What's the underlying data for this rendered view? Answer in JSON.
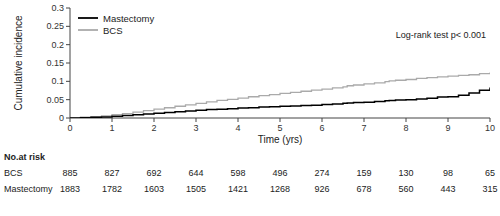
{
  "chart_data": {
    "type": "step",
    "xlabel": "Time (yrs)",
    "ylabel": "Cumulative incidence",
    "annotation": "Log-rank test p< 0.001",
    "xlim": [
      0,
      10
    ],
    "ylim": [
      0,
      0.3
    ],
    "xticks": [
      0,
      1,
      2,
      3,
      4,
      5,
      6,
      7,
      8,
      9,
      10
    ],
    "yticks": [
      0,
      0.05,
      0.1,
      0.15,
      0.2,
      0.25,
      0.3
    ],
    "grid": false,
    "legend": "upper left",
    "x": [
      0,
      0.25,
      0.5,
      0.75,
      1.0,
      1.25,
      1.5,
      1.75,
      2.0,
      2.25,
      2.5,
      2.75,
      3.0,
      3.25,
      3.5,
      3.75,
      4.0,
      4.25,
      4.5,
      4.75,
      5.0,
      5.25,
      5.5,
      5.75,
      6.0,
      6.25,
      6.5,
      6.6,
      6.75,
      7.0,
      7.25,
      7.5,
      7.6,
      7.75,
      8.0,
      8.25,
      8.5,
      8.75,
      9.0,
      9.25,
      9.5,
      9.75,
      10.0
    ],
    "series": [
      {
        "name": "Mastectomy",
        "color": "#000000",
        "values": [
          0.0,
          0.001,
          0.002,
          0.003,
          0.005,
          0.007,
          0.009,
          0.011,
          0.013,
          0.015,
          0.017,
          0.019,
          0.021,
          0.023,
          0.024,
          0.025,
          0.027,
          0.028,
          0.03,
          0.031,
          0.032,
          0.033,
          0.034,
          0.035,
          0.037,
          0.038,
          0.04,
          0.041,
          0.042,
          0.043,
          0.045,
          0.047,
          0.048,
          0.049,
          0.05,
          0.052,
          0.054,
          0.057,
          0.058,
          0.062,
          0.068,
          0.076,
          0.083
        ]
      },
      {
        "name": "BCS",
        "color": "#aaaaaa",
        "values": [
          0.0,
          0.002,
          0.004,
          0.006,
          0.009,
          0.012,
          0.016,
          0.02,
          0.024,
          0.028,
          0.032,
          0.036,
          0.04,
          0.044,
          0.048,
          0.051,
          0.054,
          0.058,
          0.061,
          0.064,
          0.067,
          0.07,
          0.073,
          0.076,
          0.079,
          0.082,
          0.085,
          0.088,
          0.09,
          0.093,
          0.096,
          0.099,
          0.101,
          0.103,
          0.105,
          0.108,
          0.11,
          0.112,
          0.114,
          0.116,
          0.118,
          0.121,
          0.124
        ]
      }
    ],
    "risk_table": {
      "label": "No.at risk",
      "x": [
        0,
        1,
        2,
        3,
        4,
        5,
        6,
        7,
        8,
        9,
        10
      ],
      "rows": [
        {
          "name": "BCS",
          "values": [
            885,
            827,
            692,
            644,
            598,
            496,
            274,
            159,
            130,
            98,
            65
          ]
        },
        {
          "name": "Mastectomy",
          "values": [
            1883,
            1782,
            1603,
            1505,
            1421,
            1268,
            926,
            678,
            560,
            443,
            315
          ]
        }
      ]
    }
  }
}
